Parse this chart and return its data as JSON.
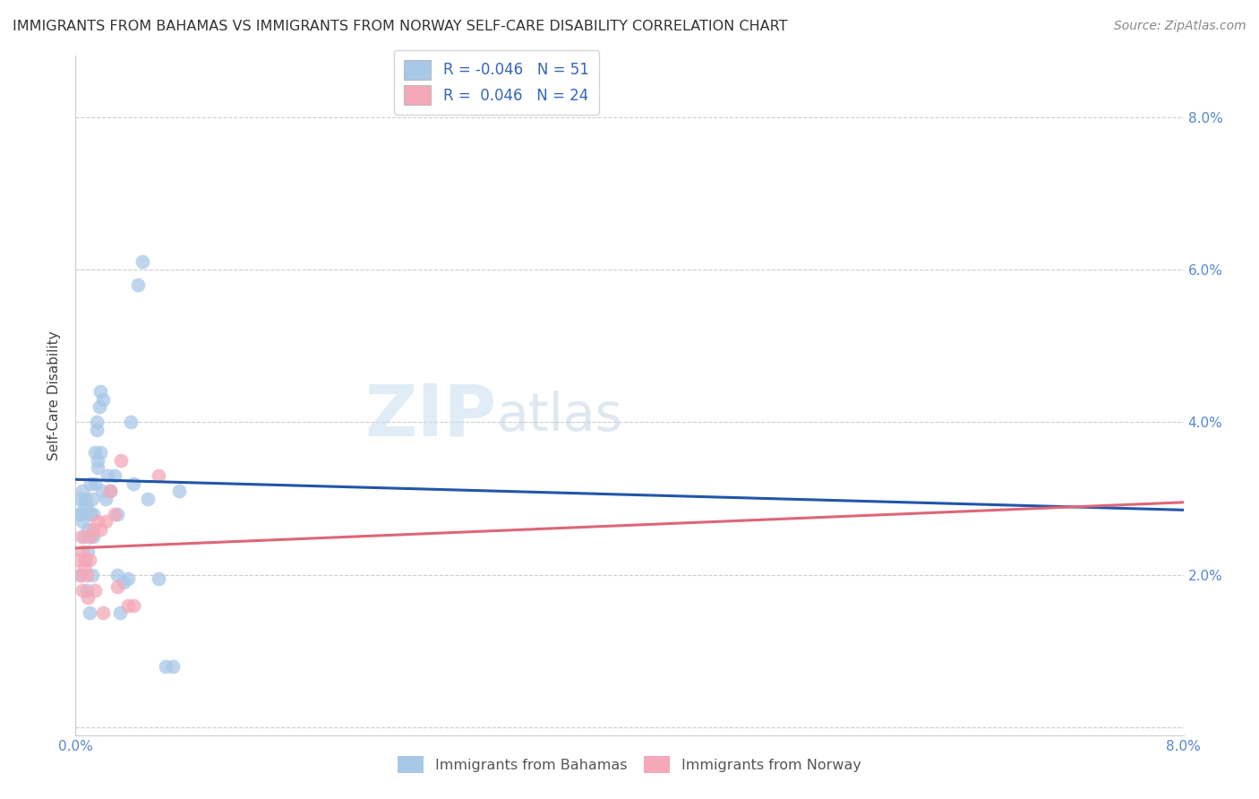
{
  "title": "IMMIGRANTS FROM BAHAMAS VS IMMIGRANTS FROM NORWAY SELF-CARE DISABILITY CORRELATION CHART",
  "source": "Source: ZipAtlas.com",
  "ylabel": "Self-Care Disability",
  "x_ticks": [
    0.0,
    0.01,
    0.02,
    0.03,
    0.04,
    0.05,
    0.06,
    0.07,
    0.08
  ],
  "x_ticklabels": [
    "0.0%",
    "",
    "",
    "",
    "",
    "",
    "",
    "",
    "8.0%"
  ],
  "y_ticks": [
    0.0,
    0.02,
    0.04,
    0.06,
    0.08
  ],
  "y_ticklabels_right": [
    "",
    "2.0%",
    "4.0%",
    "6.0%",
    "8.0%"
  ],
  "xlim": [
    0.0,
    0.08
  ],
  "ylim": [
    -0.001,
    0.088
  ],
  "bahamas_R": "-0.046",
  "bahamas_N": "51",
  "norway_R": "0.046",
  "norway_N": "24",
  "bahamas_color": "#a8c8e8",
  "norway_color": "#f4a8b8",
  "bahamas_line_color": "#2255aa",
  "norway_line_color": "#dd6677",
  "watermark_zip": "ZIP",
  "watermark_atlas": "atlas",
  "bahamas_x": [
    0.0002,
    0.0003,
    0.0004,
    0.0004,
    0.0005,
    0.0005,
    0.0006,
    0.0006,
    0.0007,
    0.0007,
    0.0008,
    0.0008,
    0.0009,
    0.0009,
    0.001,
    0.001,
    0.0011,
    0.0011,
    0.0012,
    0.0012,
    0.0013,
    0.0013,
    0.0014,
    0.0014,
    0.0015,
    0.0015,
    0.0016,
    0.0016,
    0.0017,
    0.0018,
    0.0018,
    0.0019,
    0.002,
    0.0022,
    0.0023,
    0.0025,
    0.0028,
    0.003,
    0.003,
    0.0032,
    0.0035,
    0.0038,
    0.004,
    0.0042,
    0.0045,
    0.0048,
    0.0052,
    0.006,
    0.0065,
    0.007,
    0.0075
  ],
  "bahamas_y": [
    0.028,
    0.03,
    0.02,
    0.028,
    0.031,
    0.027,
    0.029,
    0.025,
    0.022,
    0.03,
    0.018,
    0.029,
    0.026,
    0.023,
    0.025,
    0.015,
    0.028,
    0.032,
    0.03,
    0.02,
    0.025,
    0.028,
    0.032,
    0.036,
    0.039,
    0.04,
    0.034,
    0.035,
    0.042,
    0.044,
    0.036,
    0.031,
    0.043,
    0.03,
    0.033,
    0.031,
    0.033,
    0.02,
    0.028,
    0.015,
    0.019,
    0.0195,
    0.04,
    0.032,
    0.058,
    0.061,
    0.03,
    0.0195,
    0.008,
    0.008,
    0.031
  ],
  "norway_x": [
    0.0002,
    0.0003,
    0.0004,
    0.0005,
    0.0005,
    0.0006,
    0.0007,
    0.0008,
    0.0009,
    0.001,
    0.0011,
    0.0013,
    0.0014,
    0.0016,
    0.0018,
    0.002,
    0.0022,
    0.0025,
    0.0028,
    0.003,
    0.0033,
    0.0038,
    0.0042,
    0.006
  ],
  "norway_y": [
    0.022,
    0.02,
    0.025,
    0.018,
    0.023,
    0.021,
    0.022,
    0.02,
    0.017,
    0.022,
    0.025,
    0.026,
    0.018,
    0.027,
    0.026,
    0.015,
    0.027,
    0.031,
    0.028,
    0.0185,
    0.035,
    0.016,
    0.016,
    0.033
  ]
}
